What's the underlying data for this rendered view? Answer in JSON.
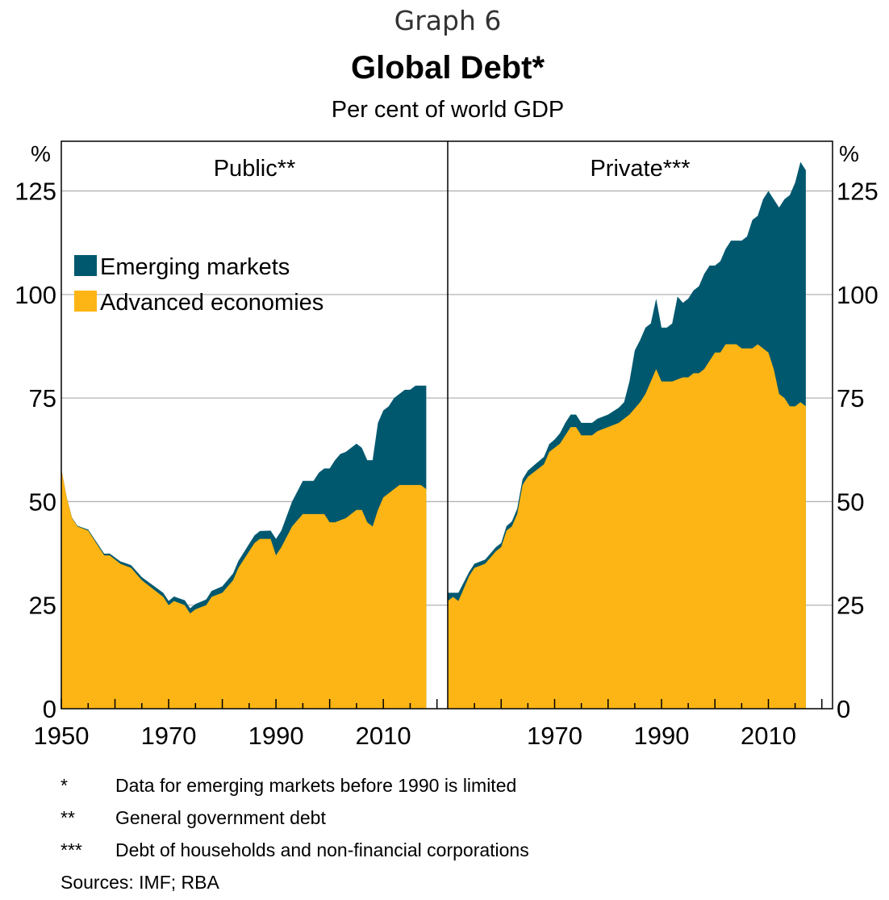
{
  "header": {
    "graph_label": "Graph 6",
    "title": "Global Debt*",
    "subtitle": "Per cent of world GDP"
  },
  "colors": {
    "advanced": "#FDB515",
    "emerging": "#00586F",
    "grid": "#b3b3b3",
    "axis": "#000000"
  },
  "chart_data": {
    "type": "area",
    "stacked": true,
    "y_unit": "%",
    "ylim": [
      0,
      137
    ],
    "yticks": [
      0,
      25,
      50,
      75,
      100,
      125
    ],
    "legend": {
      "placement": "top-left of left panel",
      "entries": [
        "Emerging markets",
        "Advanced economies"
      ]
    },
    "panels": [
      {
        "name": "Public**",
        "xlim": [
          1950,
          2022
        ],
        "xticks": [
          1950,
          1970,
          1990,
          2010
        ],
        "series": [
          {
            "name": "Advanced economies",
            "x": [
              1950,
              1951,
              1952,
              1953,
              1955,
              1957,
              1958,
              1959,
              1961,
              1963,
              1965,
              1967,
              1968,
              1969,
              1970,
              1971,
              1973,
              1974,
              1975,
              1977,
              1978,
              1980,
              1982,
              1983,
              1985,
              1986,
              1987,
              1988,
              1989,
              1990,
              1991,
              1993,
              1995,
              1996,
              1998,
              1999,
              2000,
              2001,
              2003,
              2004,
              2005,
              2006,
              2007,
              2008,
              2009,
              2010,
              2011,
              2012,
              2013,
              2015,
              2016,
              2017,
              2018
            ],
            "values": [
              58,
              51,
              46,
              44,
              43,
              39,
              37,
              37,
              35,
              34,
              31,
              29,
              28,
              27,
              25,
              26,
              25,
              23,
              24,
              25,
              27,
              28,
              31,
              34,
              38,
              40,
              41,
              41,
              41,
              37,
              39,
              44,
              47,
              47,
              47,
              47,
              45,
              45,
              46,
              47,
              48,
              48,
              45,
              44,
              48,
              51,
              52,
              53,
              54,
              54,
              54,
              54,
              53
            ]
          },
          {
            "name": "Emerging markets",
            "x": [
              1950,
              1989,
              1990,
              1991,
              1992,
              1993,
              1994,
              1995,
              1996,
              1997,
              1998,
              1999,
              2000,
              2001,
              2002,
              2003,
              2004,
              2005,
              2006,
              2007,
              2008,
              2009,
              2010,
              2011,
              2012,
              2013,
              2014,
              2015,
              2016,
              2017,
              2018
            ],
            "values": [
              0,
              2,
              4,
              4,
              5,
              6,
              7,
              8,
              8,
              8,
              10,
              11,
              13,
              15,
              16,
              16,
              16,
              16,
              15,
              15,
              16,
              21,
              21,
              21,
              22,
              22,
              23,
              23,
              24,
              24,
              25
            ]
          }
        ]
      },
      {
        "name": "Private***",
        "xlim": [
          1950,
          2022
        ],
        "xticks": [
          1970,
          1990,
          2010
        ],
        "series": [
          {
            "name": "Advanced economies",
            "x": [
              1950,
              1951,
              1952,
              1954,
              1955,
              1957,
              1959,
              1960,
              1961,
              1962,
              1963,
              1964,
              1965,
              1966,
              1967,
              1968,
              1969,
              1970,
              1971,
              1972,
              1973,
              1974,
              1975,
              1976,
              1977,
              1978,
              1980,
              1982,
              1984,
              1986,
              1987,
              1988,
              1989,
              1990,
              1992,
              1994,
              1995,
              1996,
              1997,
              1998,
              1999,
              2000,
              2001,
              2002,
              2003,
              2004,
              2005,
              2006,
              2007,
              2008,
              2009,
              2010,
              2011,
              2012,
              2013,
              2014,
              2015,
              2016,
              2017
            ],
            "values": [
              26,
              27,
              26,
              32,
              34,
              35,
              38,
              39,
              43,
              44,
              47,
              54,
              56,
              57,
              58,
              59,
              62,
              63,
              64,
              66,
              68,
              68,
              66,
              66,
              66,
              67,
              68,
              69,
              71,
              74,
              76,
              79,
              82,
              79,
              79,
              80,
              80,
              81,
              81,
              82,
              84,
              86,
              86,
              88,
              88,
              88,
              87,
              87,
              87,
              88,
              87,
              86,
              82,
              76,
              75,
              73,
              73,
              74,
              73
            ]
          },
          {
            "name": "Emerging markets",
            "x": [
              1950,
              1951,
              1952,
              1954,
              1960,
              1970,
              1972,
              1973,
              1975,
              1980,
              1983,
              1984,
              1985,
              1986,
              1987,
              1988,
              1989,
              1990,
              1991,
              1992,
              1993,
              1994,
              1995,
              1996,
              1997,
              1998,
              1999,
              2000,
              2001,
              2002,
              2003,
              2004,
              2005,
              2006,
              2007,
              2008,
              2009,
              2010,
              2011,
              2012,
              2013,
              2014,
              2015,
              2016,
              2017
            ],
            "values": [
              2,
              1,
              2,
              1,
              1,
              2,
              3,
              3,
              3,
              3,
              4,
              8,
              14,
              15,
              16,
              14,
              17,
              13,
              13,
              14,
              20,
              18,
              19,
              20,
              21,
              23,
              23,
              21,
              22,
              23,
              25,
              25,
              26,
              27,
              31,
              31,
              36,
              39,
              41,
              45,
              48,
              51,
              54,
              58,
              57
            ]
          }
        ]
      }
    ]
  },
  "notes": [
    {
      "mark": "*",
      "text": "Data for emerging markets before 1990 is limited"
    },
    {
      "mark": "**",
      "text": "General government debt"
    },
    {
      "mark": "***",
      "text": "Debt of households and non-financial corporations"
    }
  ],
  "sources": "Sources:  IMF; RBA"
}
